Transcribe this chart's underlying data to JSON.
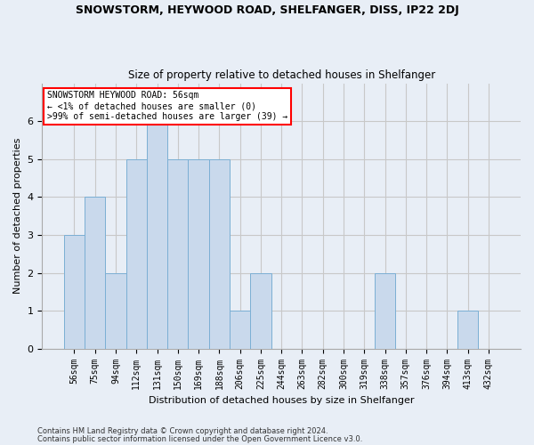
{
  "title": "SNOWSTORM, HEYWOOD ROAD, SHELFANGER, DISS, IP22 2DJ",
  "subtitle": "Size of property relative to detached houses in Shelfanger",
  "xlabel": "Distribution of detached houses by size in Shelfanger",
  "ylabel": "Number of detached properties",
  "categories": [
    "56sqm",
    "75sqm",
    "94sqm",
    "112sqm",
    "131sqm",
    "150sqm",
    "169sqm",
    "188sqm",
    "206sqm",
    "225sqm",
    "244sqm",
    "263sqm",
    "282sqm",
    "300sqm",
    "319sqm",
    "338sqm",
    "357sqm",
    "376sqm",
    "394sqm",
    "413sqm",
    "432sqm"
  ],
  "values": [
    3,
    4,
    2,
    5,
    6,
    5,
    5,
    5,
    1,
    2,
    0,
    0,
    0,
    0,
    0,
    2,
    0,
    0,
    0,
    1,
    0
  ],
  "bar_color": "#c9d9ec",
  "bar_edge_color": "#7bafd4",
  "grid_color": "#c8c8c8",
  "background_color": "#e8eef6",
  "annotation_text": "SNOWSTORM HEYWOOD ROAD: 56sqm\n← <1% of detached houses are smaller (0)\n>99% of semi-detached houses are larger (39) →",
  "annotation_box_edge_color": "red",
  "ylim": [
    0,
    7
  ],
  "yticks": [
    0,
    1,
    2,
    3,
    4,
    5,
    6
  ],
  "footnote1": "Contains HM Land Registry data © Crown copyright and database right 2024.",
  "footnote2": "Contains public sector information licensed under the Open Government Licence v3.0."
}
